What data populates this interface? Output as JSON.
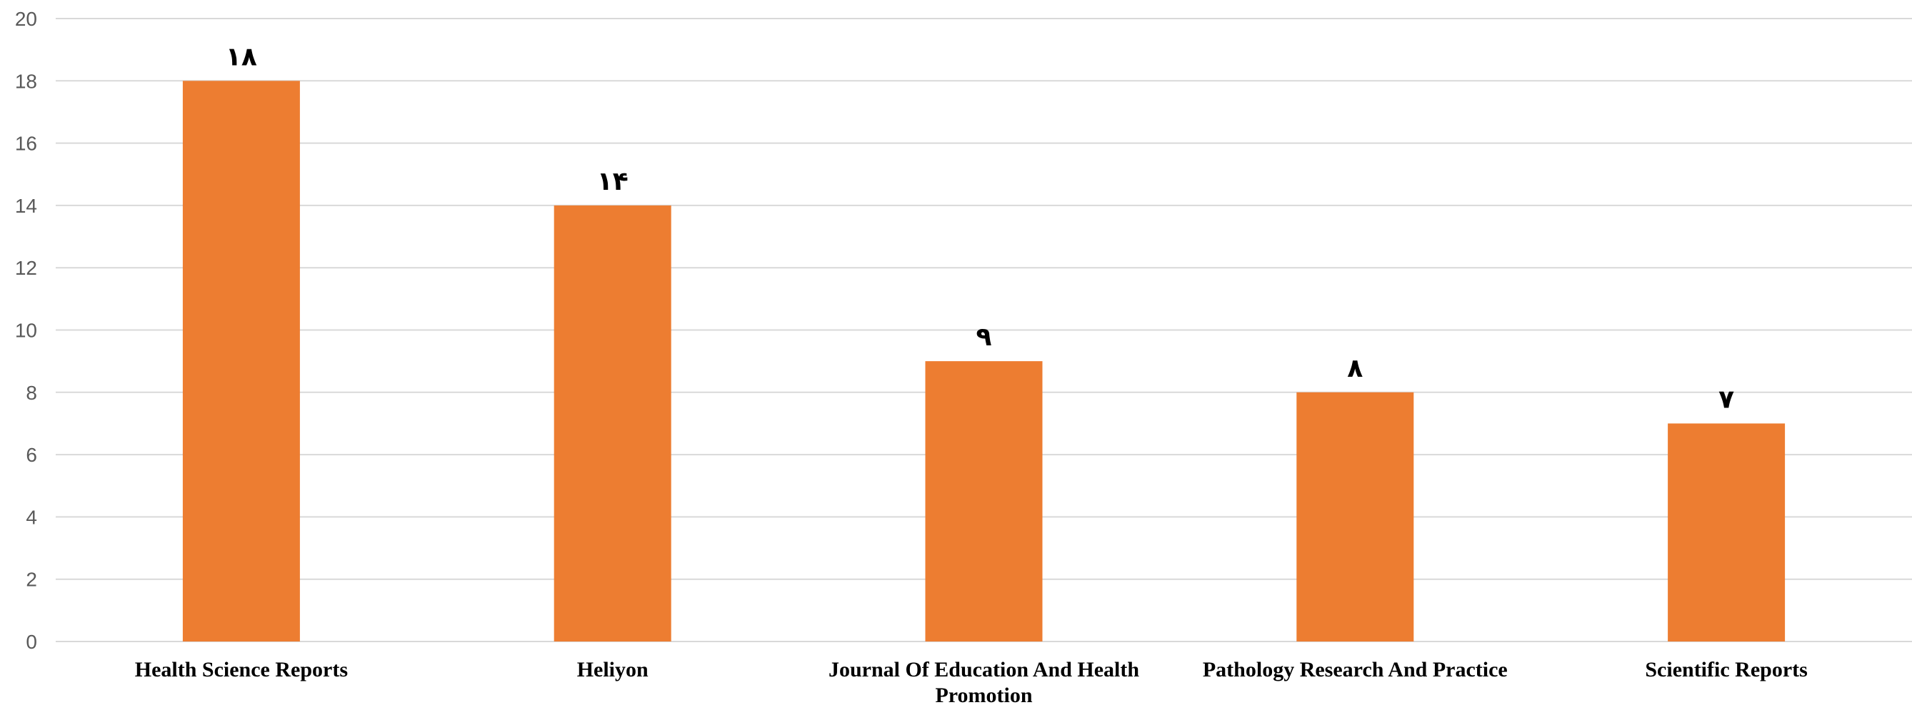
{
  "chart_data": {
    "type": "bar",
    "categories": [
      "Health Science Reports",
      "Heliyon",
      "Journal Of Education And Health Promotion",
      "Pathology Research And Practice",
      "Scientific Reports"
    ],
    "values": [
      18,
      14,
      9,
      8,
      7
    ],
    "data_labels": [
      "۱۸",
      "۱۴",
      "۹",
      "۸",
      "۷"
    ],
    "yticks": [
      "0",
      "2",
      "4",
      "6",
      "8",
      "10",
      "12",
      "14",
      "16",
      "18",
      "20"
    ],
    "ylim": [
      0,
      20
    ],
    "grid": true,
    "bar_color": "#ED7D31",
    "title": "",
    "xlabel": "",
    "ylabel": ""
  }
}
